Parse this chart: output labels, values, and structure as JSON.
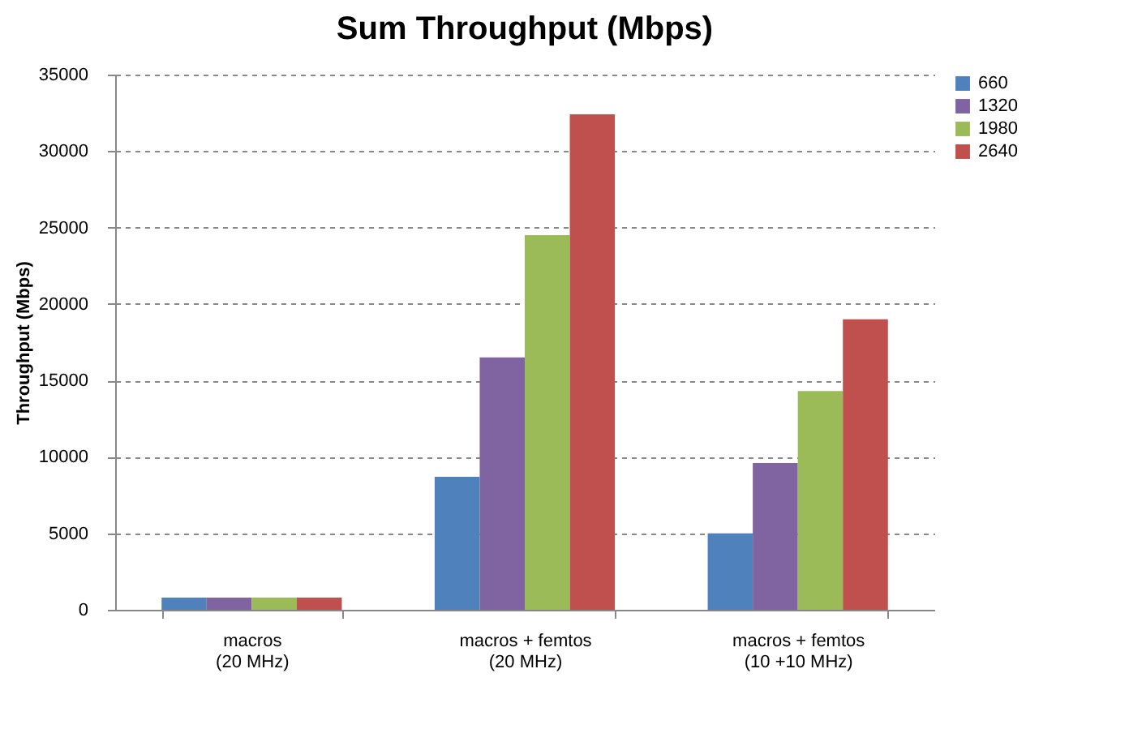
{
  "chart_data": {
    "type": "bar",
    "title": "Sum Throughput (Mbps)",
    "ylabel": "Throughput (Mbps)",
    "categories": [
      "macros\n(20 MHz)",
      "macros +  femtos\n(20 MHz)",
      "macros + femtos\n(10 +10 MHz)"
    ],
    "series": [
      {
        "name": "660",
        "color": "#4f81bd",
        "values": [
          800,
          8700,
          5000
        ]
      },
      {
        "name": "1320",
        "color": "#8064a2",
        "values": [
          800,
          16500,
          9600
        ]
      },
      {
        "name": "1980",
        "color": "#9bbb59",
        "values": [
          800,
          24500,
          14300
        ]
      },
      {
        "name": "2640",
        "color": "#c0504d",
        "values": [
          800,
          32400,
          19000
        ]
      }
    ],
    "ylim": [
      0,
      35000
    ],
    "yticks": [
      0,
      5000,
      10000,
      15000,
      20000,
      25000,
      30000,
      35000
    ],
    "grid": "y",
    "legend": "right"
  }
}
